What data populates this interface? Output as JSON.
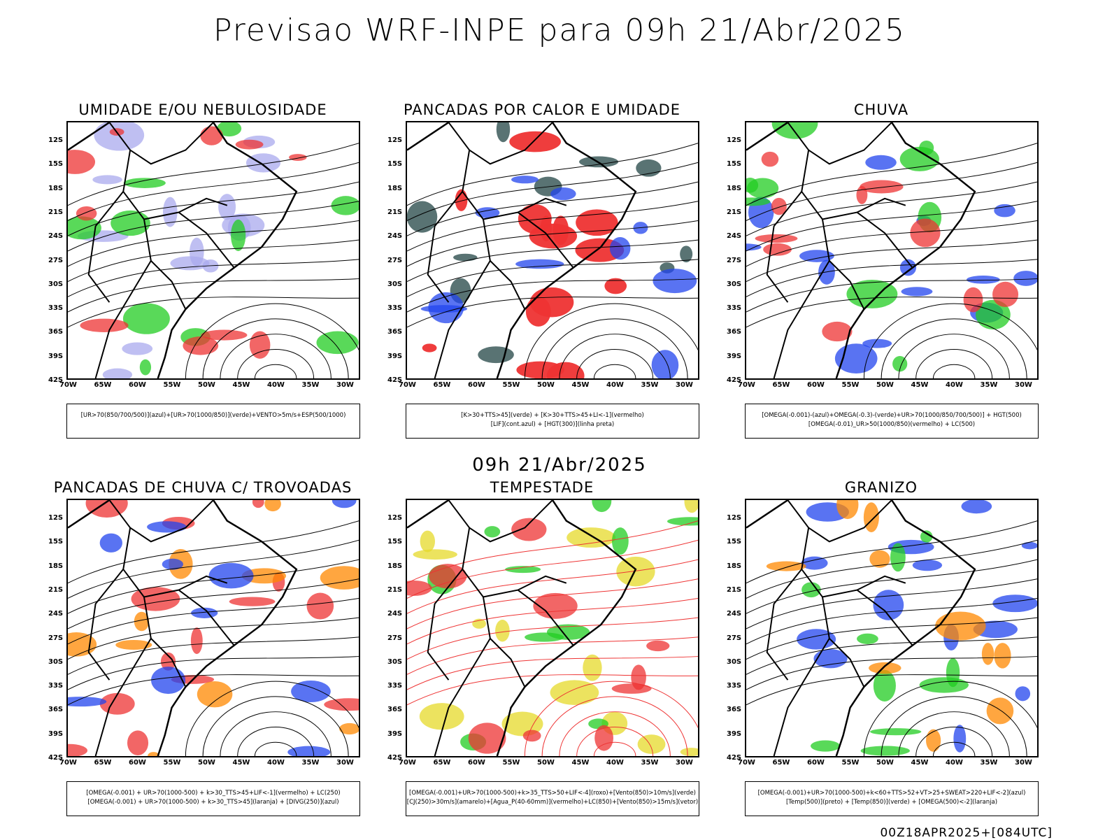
{
  "title": "Previsao WRF-INPE  para 09h 21/Abr/2025",
  "mid_date": "09h 21/Abr/2025",
  "footer": "00Z18APR2025+[084UTC]",
  "lat_ticks": [
    "12S",
    "15S",
    "18S",
    "21S",
    "24S",
    "27S",
    "30S",
    "33S",
    "36S",
    "39S",
    "42S"
  ],
  "lon_ticks": [
    "70W",
    "65W",
    "60W",
    "55W",
    "50W",
    "45W",
    "40W",
    "35W",
    "30W"
  ],
  "panels": [
    {
      "title": "UMIDADE E/OU NEBULOSIDADE",
      "legend1": "[UR>70(850/700/500)](azul)+[UR>70(1000/850)](verde)+VENTO>5m/s+ESP(500/1000)",
      "legend2": "",
      "colors": [
        "#aaaaee",
        "#22cc22",
        "#ee3333"
      ]
    },
    {
      "title": "PANCADAS POR CALOR E UMIDADE",
      "legend1": "[K>30+TTS>45](verde) + [K>30+TTS>45+LI<-1](vermelho)",
      "legend2": "[LIF](cont.azul) + [HGT(300)](linha preta)",
      "colors": [
        "#ee3333",
        "#224444",
        "#2244ee"
      ]
    },
    {
      "title": "CHUVA",
      "legend1": "[OMEGA(-0.001)-(azul)+OMEGA(-0.3)-(verde)+UR>70(1000/850/700/500)] + HGT(500)",
      "legend2": "[OMEGA(-0.01)_UR>50(1000/850)(vermelho) + LC(500)",
      "colors": [
        "#2244ee",
        "#22cc22",
        "#ee3333"
      ]
    },
    {
      "title": "PANCADAS DE CHUVA C/ TROVOADAS",
      "legend1": "[OMEGA(-0.001) + UR>70(1000-500) + k>30_TTS>45+LIF<-1](vermelho) + LC(250)",
      "legend2": "[OMEGA(-0.001) + UR>70(1000-500) + k>30_TTS>45](laranja) + [DIVG(250)](azul)",
      "colors": [
        "#ee3333",
        "#ff8800",
        "#2244ee"
      ]
    },
    {
      "title": "TEMPESTADE",
      "legend1": "[OMEGA(-0.001)+UR>70(1000-500)+k>35_TTS>50+LIF<-4](roxo)+[Vento(850)>10m/s](verde)",
      "legend2": "[CJ(250)>30m/s](amarelo)+[Agua_P(40-60mm)](vermelho)+LC(850)+[Vento(850)>15m/s](vetor)",
      "colors": [
        "#e6d92a",
        "#22cc22",
        "#ee3333"
      ]
    },
    {
      "title": "GRANIZO",
      "legend1": "[OMEGA(-0.001)+UR>70(1000-500)+k<60+TTS>52+VT>25+SWEAT>220+LIF<-2](azul)",
      "legend2": "[Temp(500)](preto) + [Temp(850)](verde) + [OMEGA(500)<-2](laranja)",
      "colors": [
        "#2244ee",
        "#22cc22",
        "#ff8800"
      ]
    }
  ]
}
